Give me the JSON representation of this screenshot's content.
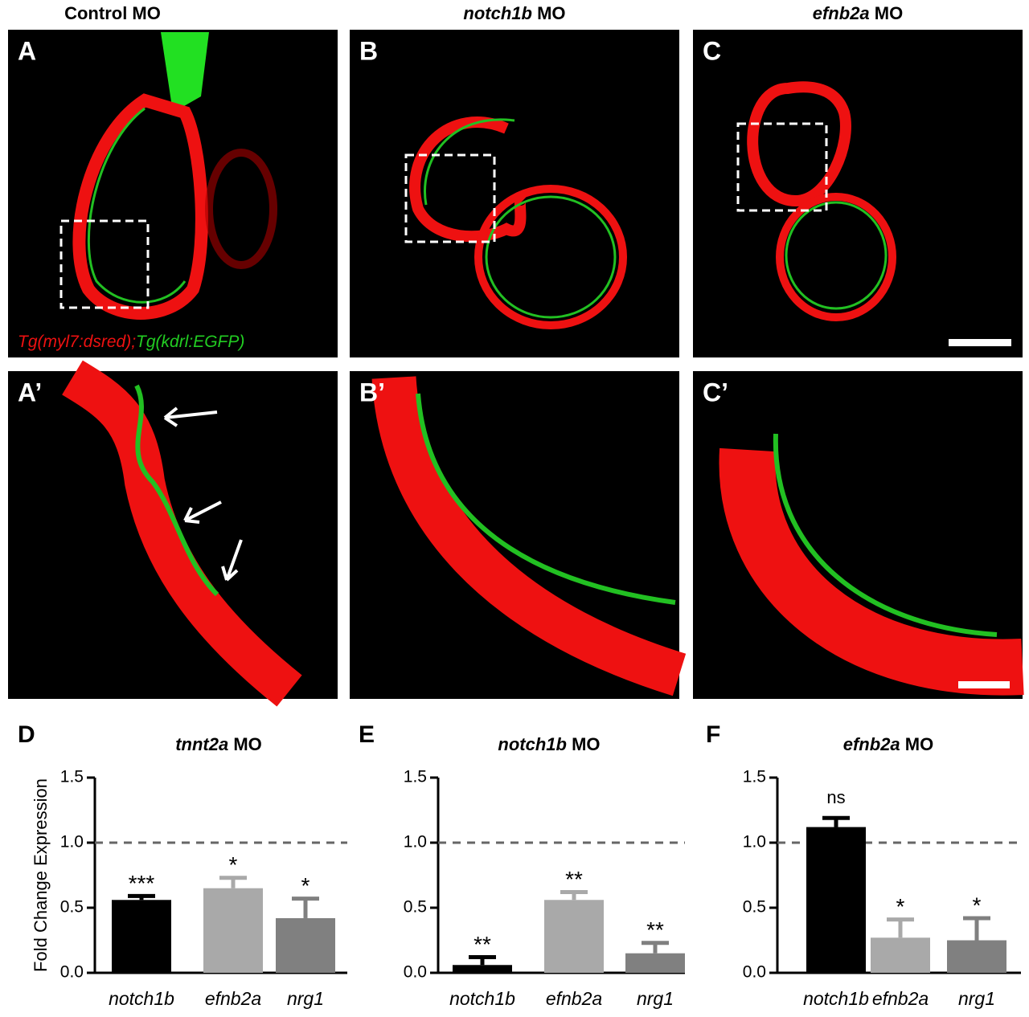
{
  "column_titles": [
    {
      "italic": "",
      "rest": "Control MO"
    },
    {
      "italic": "notch1b",
      "rest": "MO"
    },
    {
      "italic": "efnb2a",
      "rest": "MO"
    }
  ],
  "image_panels": [
    {
      "label": "A"
    },
    {
      "label": "B"
    },
    {
      "label": "C"
    },
    {
      "label": "A’"
    },
    {
      "label": "B’"
    },
    {
      "label": "C’"
    }
  ],
  "legend": {
    "red": "Tg(myl7:dsred);",
    "green": "Tg(kdrl:EGFP)"
  },
  "chart_data": [
    {
      "type": "bar",
      "letter": "D",
      "title": {
        "gene": "tnnt2a",
        "suffix": "MO"
      },
      "y_label": "Fold Change Expression",
      "categories": [
        "notch1b",
        "efnb2a",
        "nrg1"
      ],
      "values": [
        0.56,
        0.65,
        0.42
      ],
      "errors": [
        0.03,
        0.08,
        0.15
      ],
      "annotations": [
        "***",
        "*",
        "*"
      ],
      "colors": [
        "#000000",
        "#a9a9a9",
        "#808080"
      ],
      "ylim": [
        0,
        1.5
      ],
      "yticks": [
        {
          "value": 0,
          "label": "0.0"
        },
        0.5,
        {
          "value": 1,
          "label": "1.0"
        },
        1.5
      ],
      "reference_line": 1
    },
    {
      "type": "bar",
      "letter": "E",
      "title": {
        "gene": "notch1b",
        "suffix": "MO"
      },
      "categories": [
        "notch1b",
        "efnb2a",
        "nrg1"
      ],
      "values": [
        0.06,
        0.56,
        0.15
      ],
      "errors": [
        0.06,
        0.06,
        0.08
      ],
      "annotations": [
        "**",
        "**",
        "**"
      ],
      "colors": [
        "#000000",
        "#a9a9a9",
        "#808080"
      ],
      "ylim": [
        0,
        1.5
      ],
      "yticks": [
        {
          "value": 0,
          "label": "0.0"
        },
        0.5,
        {
          "value": 1,
          "label": "1.0"
        },
        1.5
      ],
      "reference_line": 1
    },
    {
      "type": "bar",
      "letter": "F",
      "title": {
        "gene": "efnb2a",
        "suffix": "MO"
      },
      "categories": [
        "notch1b",
        "efnb2a",
        "nrg1"
      ],
      "values": [
        1.12,
        0.27,
        0.25
      ],
      "errors": [
        0.07,
        0.14,
        0.17
      ],
      "annotations": [
        "ns",
        "*",
        "*"
      ],
      "colors": [
        "#000000",
        "#a9a9a9",
        "#808080"
      ],
      "ylim": [
        0,
        1.5
      ],
      "yticks": [
        {
          "value": 0,
          "label": "0.0"
        },
        0.5,
        {
          "value": 1,
          "label": "1.0"
        },
        1.5
      ],
      "reference_line": 1
    }
  ]
}
